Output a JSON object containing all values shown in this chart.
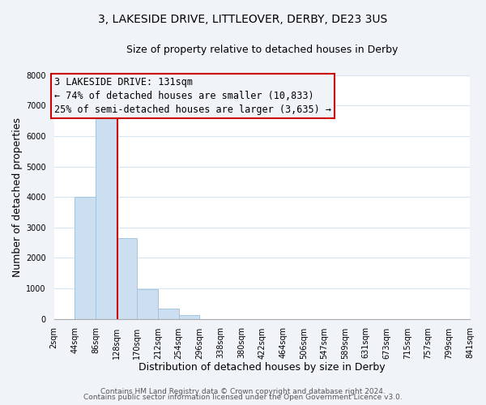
{
  "title": "3, LAKESIDE DRIVE, LITTLEOVER, DERBY, DE23 3US",
  "subtitle": "Size of property relative to detached houses in Derby",
  "xlabel": "Distribution of detached houses by size in Derby",
  "ylabel": "Number of detached properties",
  "footnote1": "Contains HM Land Registry data © Crown copyright and database right 2024.",
  "footnote2": "Contains public sector information licensed under the Open Government Licence v3.0.",
  "bar_edges": [
    2,
    44,
    86,
    128,
    170,
    212,
    254,
    296,
    338,
    380,
    422,
    464,
    506,
    547,
    589,
    631,
    673,
    715,
    757,
    799,
    841
  ],
  "bar_heights": [
    0,
    4000,
    6600,
    2650,
    975,
    330,
    120,
    0,
    0,
    0,
    0,
    0,
    0,
    0,
    0,
    0,
    0,
    0,
    0,
    0
  ],
  "bar_color": "#ccdff0",
  "bar_edge_color": "#a0c4e0",
  "property_line_x": 131,
  "property_line_color": "#cc0000",
  "annotation_line1": "3 LAKESIDE DRIVE: 131sqm",
  "annotation_line2": "← 74% of detached houses are smaller (10,833)",
  "annotation_line3": "25% of semi-detached houses are larger (3,635) →",
  "annotation_box_color": "#cc0000",
  "ylim": [
    0,
    8000
  ],
  "yticks": [
    0,
    1000,
    2000,
    3000,
    4000,
    5000,
    6000,
    7000,
    8000
  ],
  "xtick_labels": [
    "2sqm",
    "44sqm",
    "86sqm",
    "128sqm",
    "170sqm",
    "212sqm",
    "254sqm",
    "296sqm",
    "338sqm",
    "380sqm",
    "422sqm",
    "464sqm",
    "506sqm",
    "547sqm",
    "589sqm",
    "631sqm",
    "673sqm",
    "715sqm",
    "757sqm",
    "799sqm",
    "841sqm"
  ],
  "bg_color": "#f0f4f8",
  "plot_bg_color": "#ffffff",
  "grid_color": "#d8e4f0",
  "title_fontsize": 10,
  "subtitle_fontsize": 9,
  "axis_label_fontsize": 9,
  "tick_fontsize": 7,
  "footnote_fontsize": 6.5,
  "annotation_fontsize": 8.5
}
